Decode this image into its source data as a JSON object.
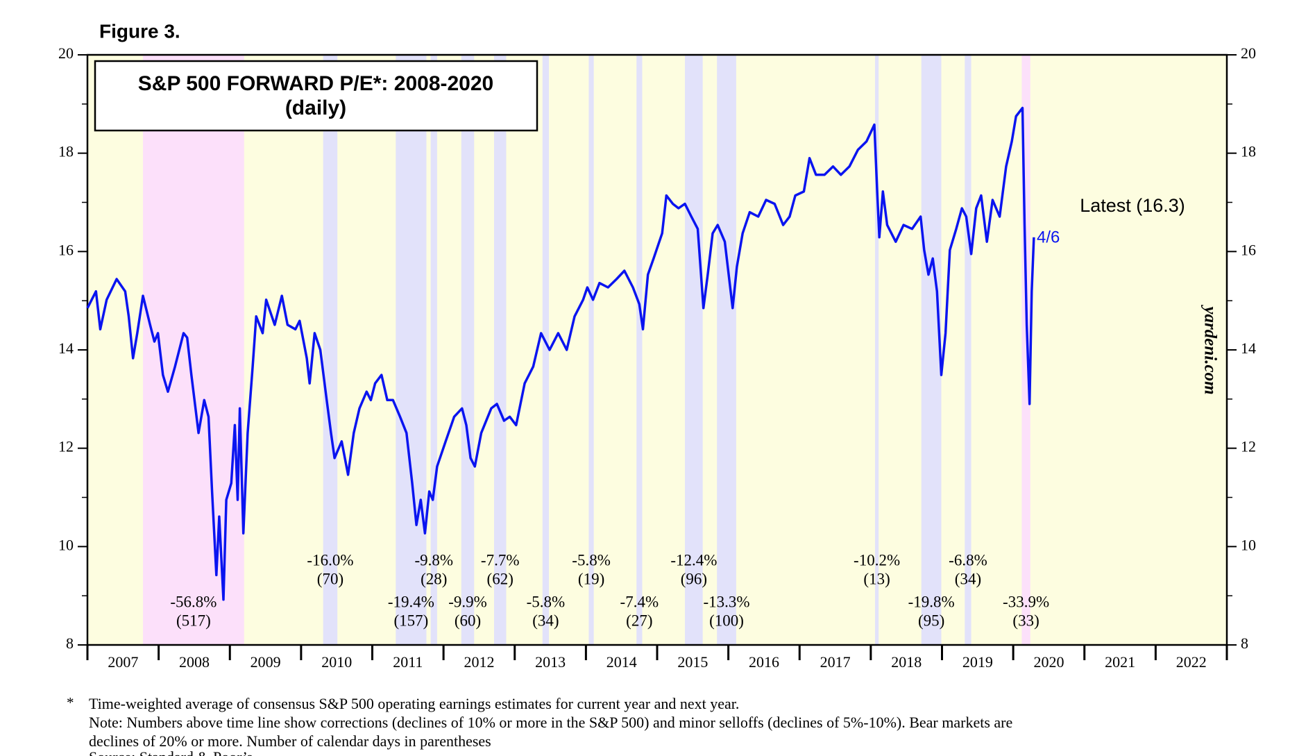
{
  "chart_data": {
    "type": "line",
    "figure_label": "Figure 3.",
    "title": "S&P 500 FORWARD P/E*: 2008-2020",
    "subtitle": "(daily)",
    "annotations": {
      "latest": "Latest (16.3)",
      "date": "4/6",
      "source_site": "yardeni.com"
    },
    "plot_background": "#fdfde0",
    "xlim": [
      2007,
      2023
    ],
    "xticks": [
      {
        "value": 2007.5,
        "label": "2007"
      },
      {
        "value": 2008.5,
        "label": "2008"
      },
      {
        "value": 2009.5,
        "label": "2009"
      },
      {
        "value": 2010.5,
        "label": "2010"
      },
      {
        "value": 2011.5,
        "label": "2011"
      },
      {
        "value": 2012.5,
        "label": "2012"
      },
      {
        "value": 2013.5,
        "label": "2013"
      },
      {
        "value": 2014.5,
        "label": "2014"
      },
      {
        "value": 2015.5,
        "label": "2015"
      },
      {
        "value": 2016.5,
        "label": "2016"
      },
      {
        "value": 2017.5,
        "label": "2017"
      },
      {
        "value": 2018.5,
        "label": "2018"
      },
      {
        "value": 2019.5,
        "label": "2019"
      },
      {
        "value": 2020.5,
        "label": "2020"
      },
      {
        "value": 2021.5,
        "label": "2021"
      },
      {
        "value": 2022.5,
        "label": "2022"
      }
    ],
    "ylim": [
      8,
      20
    ],
    "yticks": [
      8,
      10,
      12,
      14,
      16,
      18,
      20
    ],
    "yminorticks": [
      9,
      11,
      13,
      15,
      17,
      19
    ],
    "shades": [
      {
        "start": 2007.78,
        "end": 2009.2,
        "color": "#fce0fa",
        "change": "-56.8%",
        "days": "(517)"
      },
      {
        "start": 2010.31,
        "end": 2010.51,
        "color": "#e2e2fa",
        "change": "-16.0%",
        "days": "(70)"
      },
      {
        "start": 2011.33,
        "end": 2011.76,
        "color": "#e2e2fa",
        "change": "-19.4%",
        "days": "(157)"
      },
      {
        "start": 2011.82,
        "end": 2011.91,
        "color": "#e2e2fa",
        "change": "-9.8%",
        "days": "(28)"
      },
      {
        "start": 2012.25,
        "end": 2012.43,
        "color": "#e2e2fa",
        "change": "-9.9%",
        "days": "(60)"
      },
      {
        "start": 2012.71,
        "end": 2012.88,
        "color": "#e2e2fa",
        "change": "-7.7%",
        "days": "(62)"
      },
      {
        "start": 2013.39,
        "end": 2013.48,
        "color": "#e2e2fa",
        "change": "-5.8%",
        "days": "(34)"
      },
      {
        "start": 2014.04,
        "end": 2014.11,
        "color": "#e2e2fa",
        "change": "-5.8%",
        "days": "(19)"
      },
      {
        "start": 2014.71,
        "end": 2014.79,
        "color": "#e2e2fa",
        "change": "-7.4%",
        "days": "(27)"
      },
      {
        "start": 2015.39,
        "end": 2015.64,
        "color": "#e2e2fa",
        "change": "-12.4%",
        "days": "(96)"
      },
      {
        "start": 2015.84,
        "end": 2016.11,
        "color": "#e2e2fa",
        "change": "-13.3%",
        "days": "(100)"
      },
      {
        "start": 2018.06,
        "end": 2018.11,
        "color": "#e2e2fa",
        "change": "-10.2%",
        "days": "(13)"
      },
      {
        "start": 2018.71,
        "end": 2018.99,
        "color": "#e2e2fa",
        "change": "-19.8%",
        "days": "(95)"
      },
      {
        "start": 2019.32,
        "end": 2019.41,
        "color": "#e2e2fa",
        "change": "-6.8%",
        "days": "(34)"
      },
      {
        "start": 2020.12,
        "end": 2020.24,
        "color": "#fce0fa",
        "change": "-33.9%",
        "days": "(33)"
      }
    ],
    "series": [
      {
        "name": "S&P 500 forward P/E",
        "color": "#0a14f0",
        "x": [
          2007.0,
          2007.12,
          2007.18,
          2007.27,
          2007.41,
          2007.53,
          2007.58,
          2007.64,
          2007.7,
          2007.78,
          2007.88,
          2007.94,
          2007.99,
          2008.06,
          2008.13,
          2008.23,
          2008.35,
          2008.4,
          2008.46,
          2008.56,
          2008.64,
          2008.7,
          2008.75,
          2008.81,
          2008.85,
          2008.91,
          2008.95,
          2009.02,
          2009.07,
          2009.11,
          2009.14,
          2009.19,
          2009.25,
          2009.32,
          2009.37,
          2009.46,
          2009.51,
          2009.63,
          2009.73,
          2009.81,
          2009.92,
          2009.98,
          2010.08,
          2010.12,
          2010.19,
          2010.27,
          2010.36,
          2010.42,
          2010.47,
          2010.57,
          2010.66,
          2010.74,
          2010.82,
          2010.92,
          2010.98,
          2011.04,
          2011.13,
          2011.21,
          2011.29,
          2011.39,
          2011.48,
          2011.56,
          2011.62,
          2011.68,
          2011.74,
          2011.8,
          2011.85,
          2011.91,
          2012.03,
          2012.15,
          2012.26,
          2012.32,
          2012.38,
          2012.44,
          2012.53,
          2012.67,
          2012.75,
          2012.85,
          2012.93,
          2013.02,
          2013.14,
          2013.26,
          2013.37,
          2013.49,
          2013.61,
          2013.73,
          2013.84,
          2013.96,
          2014.02,
          2014.1,
          2014.19,
          2014.31,
          2014.43,
          2014.54,
          2014.66,
          2014.75,
          2014.8,
          2014.87,
          2014.95,
          2015.07,
          2015.13,
          2015.22,
          2015.3,
          2015.39,
          2015.48,
          2015.57,
          2015.65,
          2015.71,
          2015.78,
          2015.85,
          2015.95,
          2016.06,
          2016.12,
          2016.2,
          2016.3,
          2016.42,
          2016.53,
          2016.65,
          2016.77,
          2016.86,
          2016.94,
          2017.06,
          2017.14,
          2017.23,
          2017.35,
          2017.47,
          2017.58,
          2017.7,
          2017.82,
          2017.94,
          2018.05,
          2018.09,
          2018.12,
          2018.17,
          2018.23,
          2018.35,
          2018.46,
          2018.58,
          2018.7,
          2018.75,
          2018.81,
          2018.87,
          2018.93,
          2018.99,
          2019.05,
          2019.11,
          2019.2,
          2019.28,
          2019.34,
          2019.41,
          2019.48,
          2019.55,
          2019.63,
          2019.71,
          2019.81,
          2019.9,
          2019.98,
          2020.04,
          2020.13,
          2020.16,
          2020.19,
          2020.23,
          2020.26,
          2020.29
        ],
        "values": [
          14.85,
          15.19,
          14.42,
          15.02,
          15.44,
          15.19,
          14.68,
          13.83,
          14.34,
          15.1,
          14.51,
          14.17,
          14.34,
          13.49,
          13.15,
          13.66,
          14.34,
          14.25,
          13.49,
          12.31,
          12.98,
          12.64,
          11.12,
          9.42,
          10.61,
          8.92,
          10.95,
          11.29,
          12.47,
          10.95,
          12.81,
          10.27,
          12.31,
          13.66,
          14.68,
          14.34,
          15.02,
          14.51,
          15.1,
          14.51,
          14.42,
          14.59,
          13.83,
          13.32,
          14.34,
          14.0,
          12.98,
          12.31,
          11.8,
          12.14,
          11.46,
          12.31,
          12.81,
          13.15,
          12.98,
          13.32,
          13.49,
          12.98,
          12.98,
          12.64,
          12.31,
          11.29,
          10.44,
          10.95,
          10.27,
          11.12,
          10.95,
          11.63,
          12.14,
          12.64,
          12.81,
          12.47,
          11.8,
          11.63,
          12.31,
          12.81,
          12.9,
          12.56,
          12.64,
          12.47,
          13.32,
          13.66,
          14.34,
          14.0,
          14.34,
          14.0,
          14.68,
          15.02,
          15.27,
          15.02,
          15.36,
          15.27,
          15.44,
          15.61,
          15.27,
          14.93,
          14.42,
          15.53,
          15.86,
          16.37,
          17.14,
          16.97,
          16.88,
          16.97,
          16.71,
          16.46,
          14.85,
          15.53,
          16.37,
          16.54,
          16.2,
          14.85,
          15.69,
          16.37,
          16.8,
          16.71,
          17.05,
          16.97,
          16.54,
          16.71,
          17.14,
          17.22,
          17.9,
          17.56,
          17.56,
          17.73,
          17.56,
          17.73,
          18.07,
          18.24,
          18.58,
          17.22,
          16.29,
          17.22,
          16.54,
          16.2,
          16.54,
          16.46,
          16.71,
          16.03,
          15.53,
          15.86,
          15.19,
          13.49,
          14.34,
          16.03,
          16.46,
          16.88,
          16.71,
          15.95,
          16.88,
          17.14,
          16.2,
          17.05,
          16.71,
          17.73,
          18.24,
          18.75,
          18.92,
          16.54,
          14.51,
          12.9,
          15.19,
          16.29
        ]
      }
    ],
    "footnote_marker": "*",
    "footnotes": [
      "Time-weighted average of consensus S&P 500 operating earnings estimates for current year and next year.",
      "Note: Numbers above time line show corrections (declines of 10% or more in the S&P 500) and minor selloffs (declines of 5%-10%). Bear markets are",
      "declines of 20% or more. Number of calendar days in parentheses",
      "Source: Standard & Poor’s"
    ]
  }
}
